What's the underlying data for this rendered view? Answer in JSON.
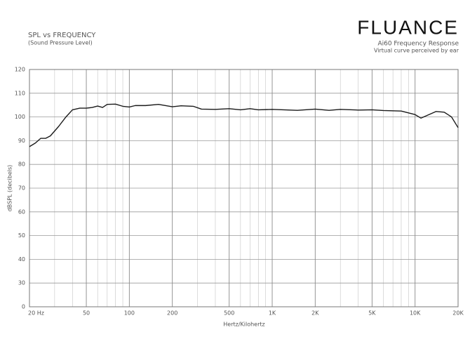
{
  "chart_data": {
    "type": "line",
    "title": "SPL vs FREQUENCY",
    "subtitle": "(Sound Pressure Level)",
    "brand": "FLUANCE",
    "chart_heading": "Ai60 Frequency Response",
    "chart_note": "Virtual curve perceived by ear",
    "x_label": "Hertz/Kilohertz",
    "y_label": "dBSPL (decibels)",
    "x_scale": "log",
    "grid": true,
    "xlim": [
      20,
      20000
    ],
    "ylim": [
      0,
      120
    ],
    "xticks": [
      {
        "value": 20,
        "label": "20 Hz"
      },
      50,
      100,
      200,
      500,
      {
        "value": 1000,
        "label": "1K"
      },
      {
        "value": 2000,
        "label": "2K"
      },
      {
        "value": 5000,
        "label": "5K"
      },
      {
        "value": 10000,
        "label": "10K"
      },
      {
        "value": 20000,
        "label": "20K"
      }
    ],
    "x_minor_ticks": [
      30,
      40,
      60,
      70,
      80,
      90,
      300,
      400,
      600,
      700,
      800,
      900,
      3000,
      4000,
      6000,
      7000,
      8000,
      9000
    ],
    "yticks": [
      0,
      30,
      40,
      50,
      60,
      70,
      80,
      90,
      100,
      110,
      120
    ],
    "series": [
      {
        "color": "#1a1a1a",
        "x": [
          20,
          22,
          24,
          26,
          28,
          32,
          36,
          40,
          45,
          50,
          55,
          60,
          65,
          70,
          80,
          90,
          100,
          110,
          130,
          160,
          200,
          230,
          280,
          320,
          400,
          500,
          600,
          700,
          800,
          1000,
          1500,
          2000,
          2500,
          3000,
          4000,
          5000,
          6000,
          8000,
          10000,
          11000,
          12000,
          14000,
          16000,
          18000,
          20000
        ],
        "values": [
          87.5,
          89,
          91,
          91,
          92,
          96,
          100,
          103,
          103.7,
          103.7,
          104,
          104.6,
          104,
          105.3,
          105.4,
          104.5,
          104.2,
          104.8,
          104.8,
          105.3,
          104.3,
          104.7,
          104.5,
          103.3,
          103.2,
          103.5,
          103,
          103.5,
          103,
          103.2,
          102.8,
          103.3,
          102.8,
          103.2,
          102.9,
          103,
          102.7,
          102.5,
          101,
          99.5,
          100.5,
          102.3,
          102,
          100,
          95.5
        ]
      }
    ]
  }
}
